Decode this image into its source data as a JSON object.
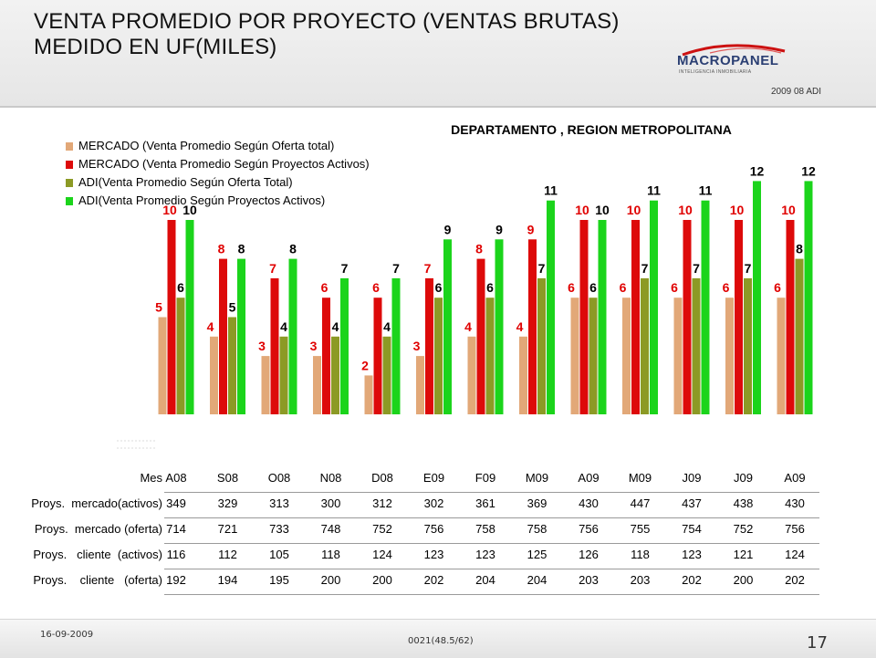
{
  "header": {
    "title_line1": "VENTA PROMEDIO POR PROYECTO (VENTAS BRUTAS)",
    "title_line2": "MEDIDO EN UF(MILES)",
    "logo_text": "MACROPANEL",
    "logo_tagline": "INTELIGENCIA INMOBILIARIA",
    "code": "2009 08 ADI"
  },
  "chart_data": {
    "type": "bar",
    "title": "DEPARTAMENTO , REGION METROPOLITANA",
    "categories": [
      "A08",
      "S08",
      "O08",
      "N08",
      "D08",
      "E09",
      "F09",
      "M09",
      "A09",
      "M09",
      "J09",
      "J09",
      "A09"
    ],
    "series": [
      {
        "name": "MERCADO (Venta Promedio Según Oferta total)",
        "color": "#e2a878",
        "label_color": "#e00000",
        "values": [
          5,
          4,
          3,
          3,
          2,
          3,
          4,
          4,
          6,
          6,
          6,
          6,
          6
        ]
      },
      {
        "name": "MERCADO (Venta Promedio Según Proyectos Activos)",
        "color": "#dd0a0a",
        "label_color": "#e00000",
        "values": [
          10,
          8,
          7,
          6,
          6,
          7,
          8,
          9,
          10,
          10,
          10,
          10,
          10
        ]
      },
      {
        "name": "ADI(Venta Promedio Según Oferta Total)",
        "color": "#8c9a25",
        "label_color": "#000000",
        "values": [
          6,
          5,
          4,
          4,
          4,
          6,
          6,
          7,
          6,
          7,
          7,
          7,
          8
        ]
      },
      {
        "name": "ADI(Venta Promedio Según Proyectos Activos)",
        "color": "#1bd41b",
        "label_color": "#000000",
        "values": [
          10,
          8,
          8,
          7,
          7,
          9,
          9,
          11,
          10,
          11,
          11,
          12,
          12
        ]
      }
    ],
    "legend_position": "top-left",
    "grid": false
  },
  "table": {
    "header_label": "Mes",
    "months": [
      "A08",
      "S08",
      "O08",
      "N08",
      "D08",
      "E09",
      "F09",
      "M09",
      "A09",
      "M09",
      "J09",
      "J09",
      "A09"
    ],
    "rows": [
      {
        "label": "Proys.  mercado(activos)",
        "values": [
          "349",
          "329",
          "313",
          "300",
          "312",
          "302",
          "361",
          "369",
          "430",
          "447",
          "437",
          "438",
          "430"
        ]
      },
      {
        "label": "Proys.  mercado (oferta)",
        "values": [
          "714",
          "721",
          "733",
          "748",
          "752",
          "756",
          "758",
          "758",
          "756",
          "755",
          "754",
          "752",
          "756"
        ]
      },
      {
        "label": "Proys.   cliente  (activos)",
        "values": [
          "116",
          "112",
          "105",
          "118",
          "124",
          "123",
          "123",
          "125",
          "126",
          "118",
          "123",
          "121",
          "124"
        ]
      },
      {
        "label": "Proys.    cliente   (oferta)",
        "values": [
          "192",
          "194",
          "195",
          "200",
          "200",
          "202",
          "204",
          "204",
          "203",
          "203",
          "202",
          "200",
          "202"
        ]
      }
    ]
  },
  "footer": {
    "date": "16-09-2009",
    "code": "0021(48.5/62)",
    "page": "17"
  }
}
